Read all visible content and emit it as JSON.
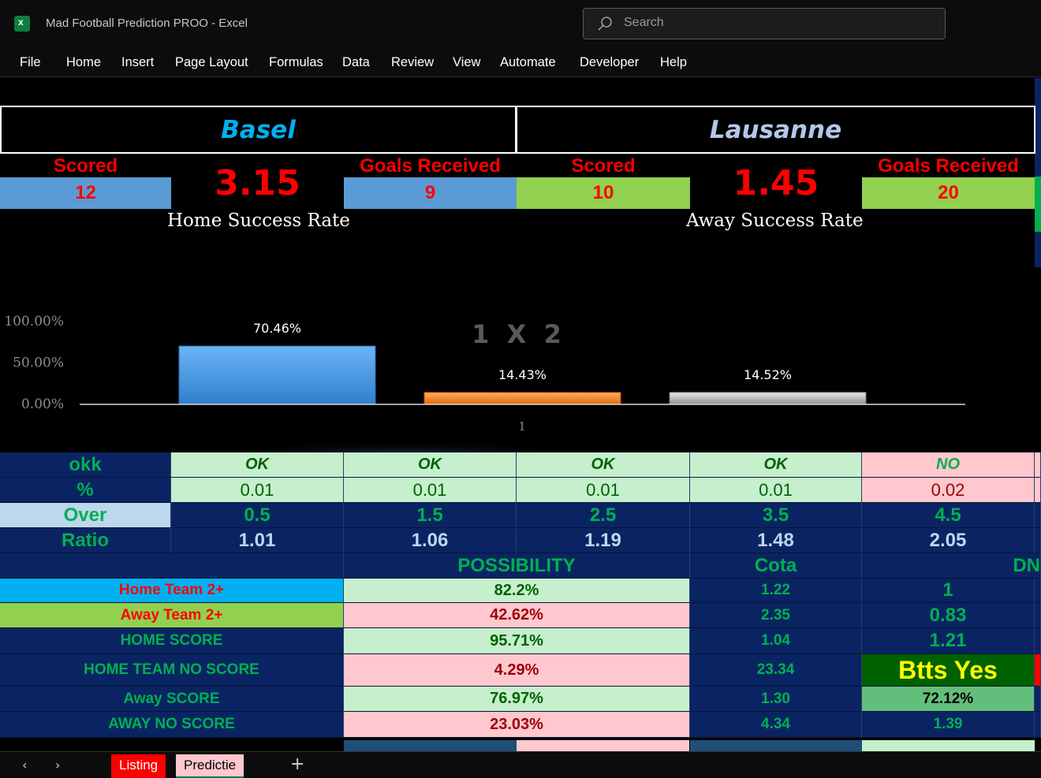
{
  "window": {
    "title": "Mad Football Prediction PROO  -  Excel",
    "search_placeholder": "Search"
  },
  "menu": [
    "File",
    "Home",
    "Insert",
    "Page Layout",
    "Formulas",
    "Data",
    "Review",
    "View",
    "Automate",
    "Developer",
    "Help"
  ],
  "teams": {
    "home": "Basel",
    "away": "Lausanne",
    "home_color": "#00b0f0",
    "away_color": "#b4c7e7"
  },
  "stats": {
    "home_scored_label": "Scored",
    "home_scored": "12",
    "home_big": "3.15",
    "home_received_label": "Goals Received",
    "home_received": "9",
    "away_scored_label": "Scored",
    "away_scored": "10",
    "away_big": "1.45",
    "away_received_label": "Goals Received",
    "away_received": "20",
    "home_rate_title": "Home Success Rate",
    "away_rate_title": "Away Success Rate"
  },
  "chart_data": {
    "type": "bar",
    "title": "1  X  2",
    "categories": [
      "1"
    ],
    "series": [
      {
        "values": [
          70.46
        ],
        "label": "70.46%",
        "color": "#4a9be8"
      },
      {
        "values": [
          14.43
        ],
        "label": "14.43%",
        "color": "#f07a1a"
      },
      {
        "values": [
          14.52
        ],
        "label": "14.52%",
        "color": "#a8a8a8"
      }
    ],
    "y_ticks": [
      "100.00%",
      "50.00%",
      "0.00%"
    ],
    "ylim": [
      0,
      100
    ],
    "x_label": "1"
  },
  "over_table": {
    "rows": [
      {
        "label": "okk",
        "values": [
          "OK",
          "OK",
          "OK",
          "OK",
          "NO"
        ]
      },
      {
        "label": "%",
        "values": [
          "0.01",
          "0.01",
          "0.01",
          "0.01",
          "0.02"
        ]
      },
      {
        "label": "Over",
        "values": [
          "0.5",
          "1.5",
          "2.5",
          "3.5",
          "4.5"
        ]
      },
      {
        "label": "Ratio",
        "values": [
          "1.01",
          "1.06",
          "1.19",
          "1.48",
          "2.05"
        ]
      }
    ]
  },
  "possibility": {
    "headers": {
      "possibility": "POSSIBILITY",
      "cota": "Cota",
      "dn": "DN"
    },
    "rows": [
      {
        "label": "Home Team 2+",
        "pct": "82.2%",
        "cota": "1.22",
        "dn": "1"
      },
      {
        "label": "Away Team 2+",
        "pct": "42.62%",
        "cota": "2.35",
        "dn": "0.83"
      },
      {
        "label": "HOME SCORE",
        "pct": "95.71%",
        "cota": "1.04",
        "dn": "1.21"
      },
      {
        "label": "HOME TEAM NO SCORE",
        "pct": "4.29%",
        "cota": "23.34",
        "dn": "Btts Yes"
      },
      {
        "label": "Away SCORE",
        "pct": "76.97%",
        "cota": "1.30",
        "dn": "72.12%"
      },
      {
        "label": "AWAY NO SCORE",
        "pct": "23.03%",
        "cota": "4.34",
        "dn": "1.39"
      }
    ]
  },
  "sheet_tabs": [
    "Listing",
    "Predictie"
  ]
}
